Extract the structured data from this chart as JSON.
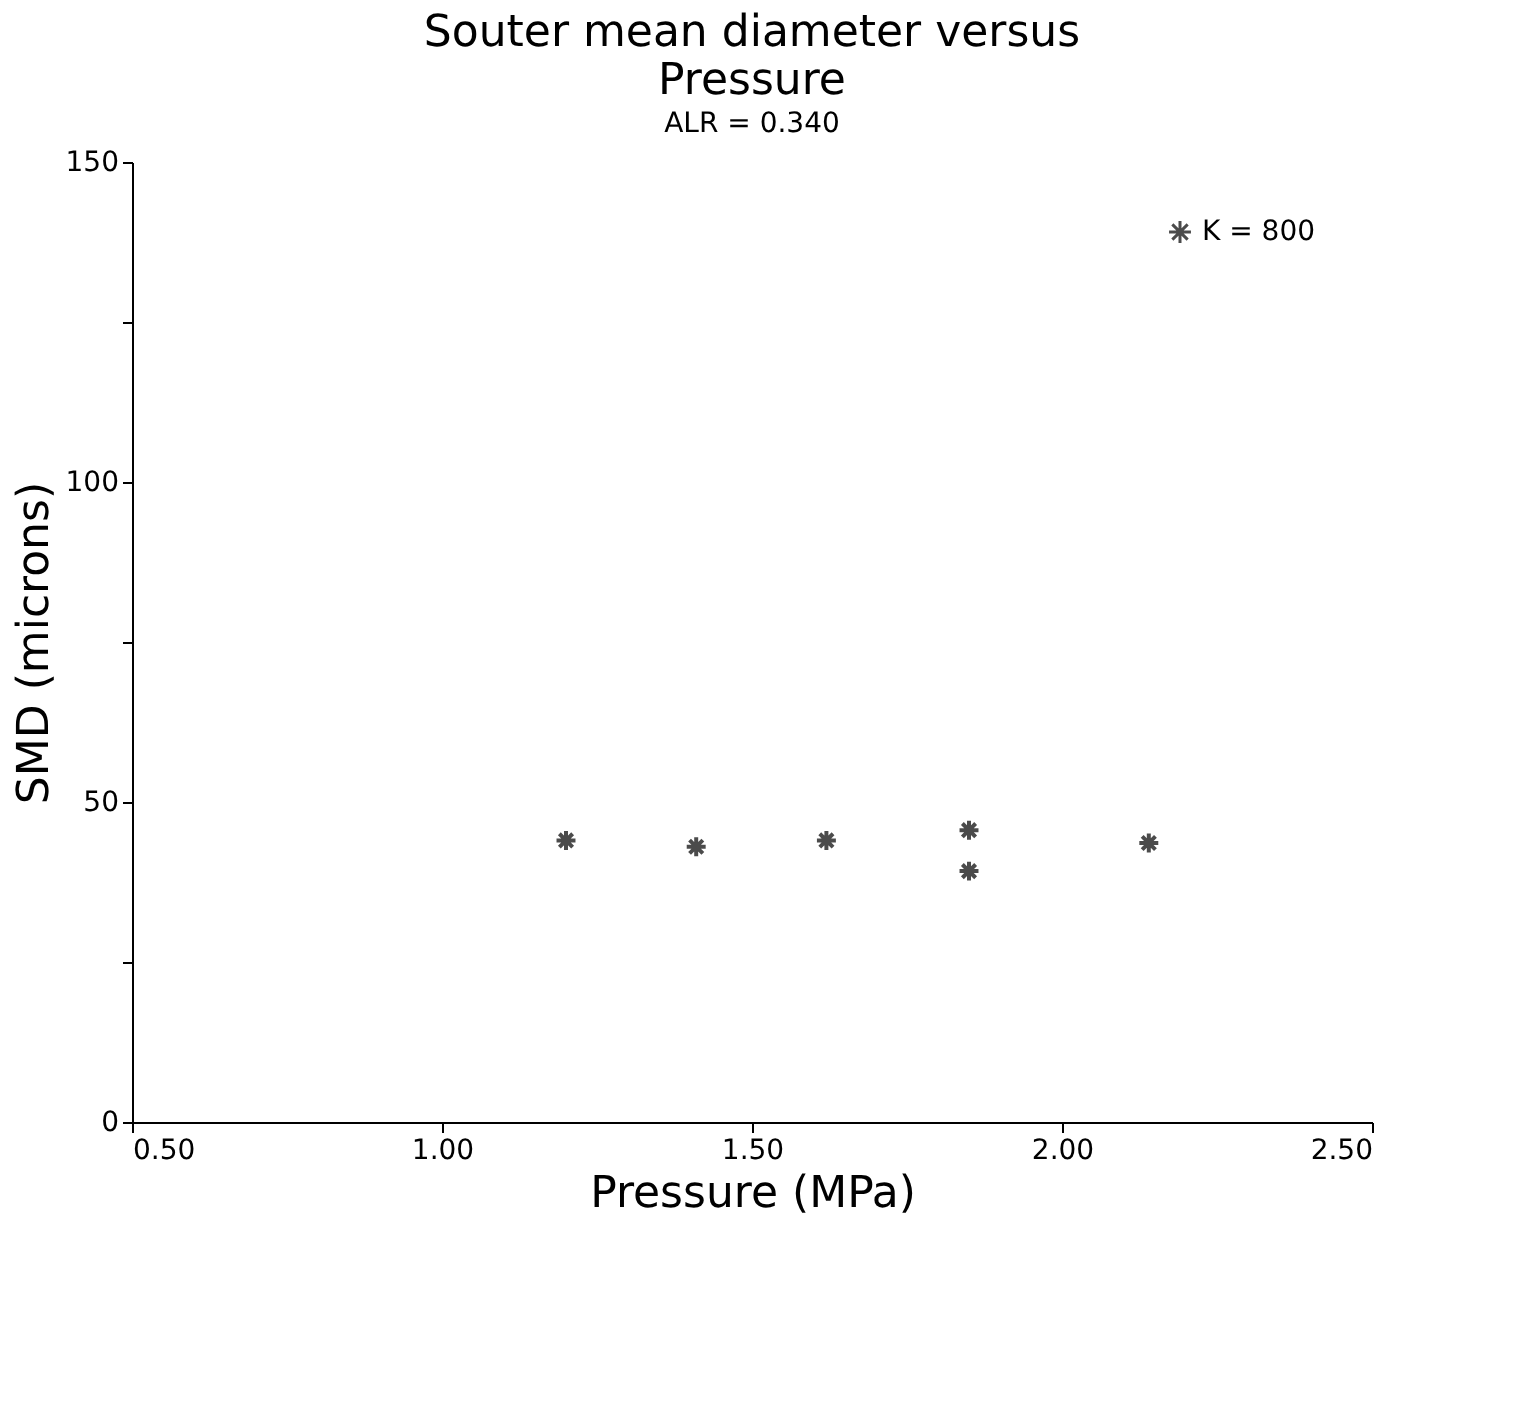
{
  "chart_data": {
    "type": "scatter",
    "title": "Souter mean diameter versus\nPressure",
    "subtitle": "ALR = 0.340",
    "xlabel": "Pressure (MPa)",
    "ylabel": "SMD (microns)",
    "x": [
      1.2,
      1.41,
      1.62,
      1.85,
      1.85,
      2.14
    ],
    "series": [
      {
        "name": "K = 800",
        "color": "#000000",
        "values": [
          44,
          43,
          44,
          45.6,
          39.2,
          43.6
        ]
      }
    ],
    "xlim": [
      0.5,
      2.5
    ],
    "xticks": [
      {
        "value": 0.5,
        "label": "0.50"
      },
      {
        "value": 1.0,
        "label": "1.00"
      },
      {
        "value": 1.5,
        "label": "1.50"
      },
      {
        "value": 2.0,
        "label": "2.00"
      },
      {
        "value": 2.5,
        "label": "2.50"
      }
    ],
    "ylim": [
      0,
      150
    ],
    "yticks": [
      0,
      {
        "value": 25,
        "label": null
      },
      50,
      {
        "value": 75,
        "label": null
      },
      100,
      {
        "value": 125,
        "label": null
      },
      150
    ],
    "grid": false,
    "legend": "top right",
    "marker": "cross"
  }
}
